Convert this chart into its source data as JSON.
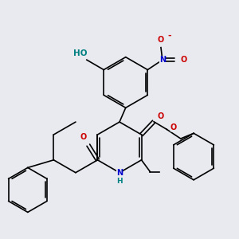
{
  "background_color": "#e8eaf0",
  "atom_colors": {
    "C": "#000000",
    "N": "#0000cc",
    "O": "#cc0000",
    "H_col": "#008080"
  },
  "figsize": [
    3.0,
    3.0
  ],
  "dpi": 100,
  "lw": 1.2,
  "fs": 7.0
}
